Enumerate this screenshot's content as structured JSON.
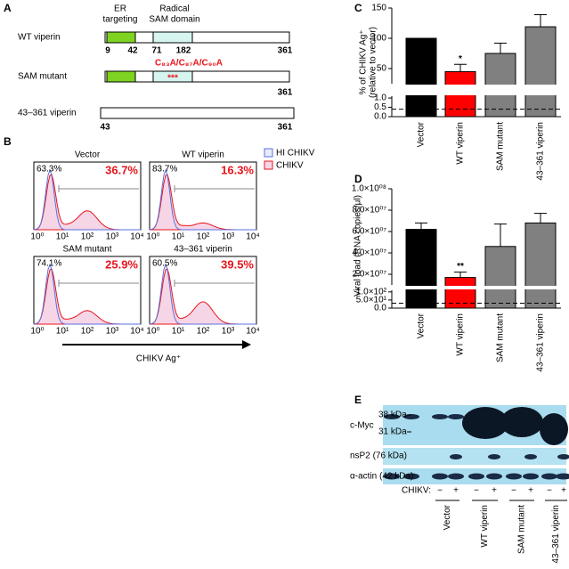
{
  "figure": {
    "panel_labels": [
      "A",
      "B",
      "C",
      "D",
      "E"
    ],
    "panel_a": {
      "er_targeting": [
        "ER",
        "targeting"
      ],
      "radical_sam": [
        "Radical",
        "SAM domain"
      ],
      "constructs": [
        {
          "name": "WT viperin",
          "boundaries": [
            9,
            42,
            71,
            182,
            361
          ]
        },
        {
          "name": "SAM mutant",
          "mutation": "C₈₃A/C₈₇A/C₉₀A",
          "mutation_mark": "***",
          "boundaries": [
            361
          ]
        },
        {
          "name": "43–361 viperin",
          "boundaries": [
            43,
            361
          ]
        }
      ]
    },
    "panel_b": {
      "legend": [
        "HI CHIKV",
        "CHIKV"
      ],
      "x_ticks": [
        "10⁰",
        "10¹",
        "10²",
        "10³",
        "10⁴"
      ],
      "x_label": "CHIKV Ag⁺",
      "plots": [
        {
          "title": "Vector",
          "gate_left": "63.3%",
          "gate_right": "36.7%"
        },
        {
          "title": "WT viperin",
          "gate_left": "83.7%",
          "gate_right": "16.3%"
        },
        {
          "title": "SAM mutant",
          "gate_left": "74.1%",
          "gate_right": "25.9%"
        },
        {
          "title": "43–361 viperin",
          "gate_left": "60.5%",
          "gate_right": "39.5%"
        }
      ]
    },
    "panel_e": {
      "c_myc": "c-Myc",
      "kda_38": "38 kDa",
      "kda_31": "31 kDa",
      "nsp2": "nsP2 (76 kDa)",
      "actin": "α-actin (42 kDa)",
      "chikv_label": "CHIKV:",
      "lane_signs": [
        "−",
        "+",
        "−",
        "+",
        "−",
        "+",
        "−",
        "+"
      ],
      "groups": [
        "Vector",
        "WT viperin",
        "SAM mutant",
        "43–361 viperin"
      ]
    }
  },
  "chart_data": [
    {
      "type": "bar",
      "y_label": [
        "% of CHIKV Ag⁺",
        "(relative to vector)"
      ],
      "categories": [
        "Vector",
        "WT viperin",
        "SAM mutant",
        "43–361 viperin"
      ],
      "values": [
        100,
        45,
        75,
        119
      ],
      "errors": [
        null,
        12,
        17,
        20
      ],
      "colors": [
        "#000000",
        "#ff0000",
        "#808080",
        "#808080"
      ],
      "significance": [
        null,
        "*",
        null,
        null
      ],
      "ylim": [
        25,
        150
      ],
      "yticks": [
        50,
        100,
        150
      ],
      "ylim_lower": [
        0,
        1.1
      ],
      "yticks_lower": [
        {
          "value": 0,
          "label": "0.0"
        },
        0.5,
        {
          "value": 1,
          "label": "1.0"
        }
      ],
      "threshold": 0.4
    },
    {
      "type": "bar",
      "y_label": [
        "Viral load (RNA copies/μl)"
      ],
      "categories": [
        "Vector",
        "WT viperin",
        "SAM mutant",
        "43–361 viperin"
      ],
      "values": [
        62000000,
        17000000,
        46000000,
        68000000
      ],
      "errors": [
        6000000,
        5000000,
        21000000,
        9000000
      ],
      "colors": [
        "#000000",
        "#ff0000",
        "#808080",
        "#808080"
      ],
      "significance": [
        null,
        "**",
        null,
        null
      ],
      "ylim": [
        10000000,
        100000000
      ],
      "yticks": [
        {
          "value": 20000000,
          "label": "2.0×10⁰⁷"
        },
        {
          "value": 40000000,
          "label": "4.0×10⁰⁷"
        },
        {
          "value": 60000000,
          "label": "6.0×10⁰⁷"
        },
        {
          "value": 80000000,
          "label": "8.0×10⁰⁷"
        },
        {
          "value": 100000000,
          "label": "1.0×10⁰⁸"
        }
      ],
      "ylim_lower": [
        0,
        110
      ],
      "yticks_lower": [
        {
          "value": 0,
          "label": "0.0"
        },
        {
          "value": 50,
          "label": "5.0×10¹"
        },
        {
          "value": 100,
          "label": "1.0×10²"
        }
      ],
      "threshold": 30
    }
  ]
}
